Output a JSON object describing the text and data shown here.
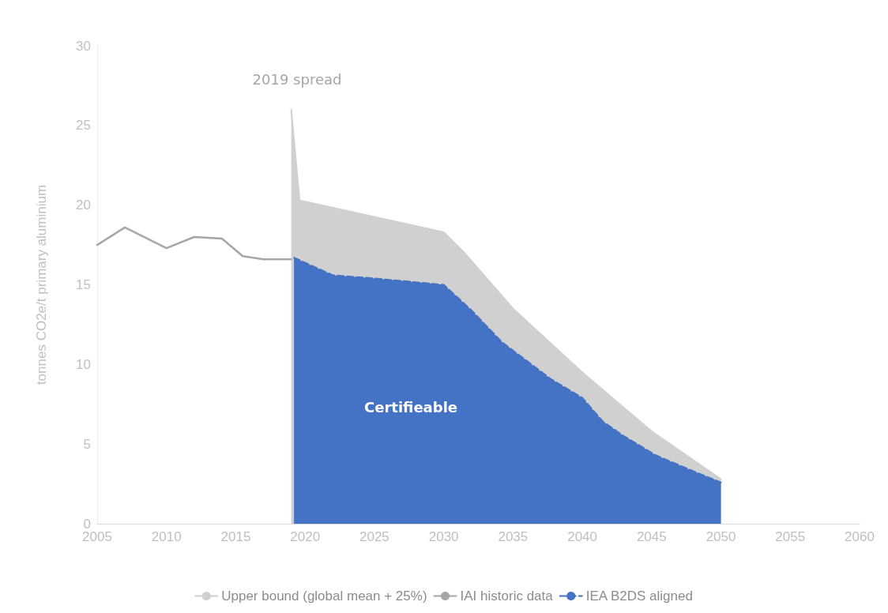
{
  "chart_data": {
    "type": "area",
    "ylabel": "tonnes CO2e/t primary aluminium",
    "xlim": [
      2005,
      2060
    ],
    "xticks": [
      2005,
      2010,
      2015,
      2020,
      2025,
      2030,
      2035,
      2040,
      2045,
      2050,
      2055,
      2060
    ],
    "ylim": [
      0,
      30
    ],
    "yticks": [
      0,
      5,
      10,
      15,
      20,
      25,
      30
    ],
    "grid": false,
    "legend": "bottom",
    "marker": "none",
    "series": [
      {
        "name": "Upper bound (global mean + 25%)",
        "color": "#d0d0d0",
        "x": [
          2019,
          2019.6,
          2030,
          2031.5,
          2035,
          2040,
          2045,
          2050
        ],
        "values": [
          26,
          20.3,
          18.3,
          17,
          13.5,
          9.5,
          5.8,
          2.8
        ]
      },
      {
        "name": "IAI historic data",
        "type": "line",
        "color": "#a6a6a6",
        "x": [
          2005,
          2007,
          2010,
          2012,
          2014,
          2015.5,
          2017,
          2019
        ],
        "values": [
          17.5,
          18.6,
          17.3,
          18,
          17.9,
          16.8,
          16.6,
          16.6
        ]
      },
      {
        "name": "IEA B2DS aligned",
        "color": "#4472c4",
        "line_style": "dashed",
        "x": [
          2019.2,
          2022,
          2025,
          2030,
          2032,
          2034.2,
          2037.7,
          2040,
          2041.5,
          2043,
          2045.3,
          2048,
          2050
        ],
        "values": [
          16.7,
          15.6,
          15.4,
          15,
          13.4,
          11.4,
          9.1,
          7.9,
          6.4,
          5.5,
          4.3,
          3.3,
          2.6
        ]
      }
    ],
    "annotations": [
      "2019 spread",
      "Certifieable"
    ]
  }
}
